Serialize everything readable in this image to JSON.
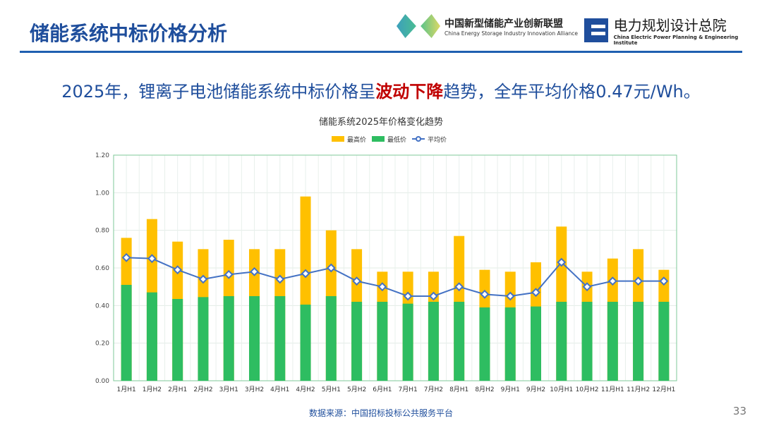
{
  "header": {
    "title": "储能系统中标价格分析",
    "logo1_cn": "中国新型储能产业创新联盟",
    "logo1_en": "China Energy Storage Industry Innovation Alliance",
    "logo2_cn": "电力规划设计总院",
    "logo2_en": "China Electric Power Planning & Engineering Institute"
  },
  "headline": {
    "pre": "2025年，锂离子电池储能系统中标价格呈",
    "highlight": "波动下降",
    "post": "趋势，全年平均价格0.47元/Wh。"
  },
  "footer": {
    "source": "数据来源：中国招标投标公共服务平台",
    "page": "33"
  },
  "colors": {
    "max": "#ffc000",
    "min": "#2ebd61",
    "avg": "#4472c4"
  },
  "chart_data": {
    "type": "bar",
    "title": "储能系统2025年价格变化趋势",
    "categories": [
      "1月H1",
      "1月H2",
      "2月H1",
      "2月H2",
      "3月H1",
      "3月H2",
      "4月H1",
      "4月H2",
      "5月H1",
      "5月H2",
      "6月H1",
      "7月H1",
      "7月H2",
      "8月H1",
      "8月H2",
      "9月H1",
      "9月H2",
      "10月H1",
      "10月H2",
      "11月H1",
      "11月H2",
      "12月H1"
    ],
    "series": [
      {
        "name": "最高价",
        "type": "bar",
        "values": [
          0.76,
          0.86,
          0.74,
          0.7,
          0.75,
          0.7,
          0.7,
          0.98,
          0.8,
          0.7,
          0.58,
          0.58,
          0.58,
          0.77,
          0.59,
          0.58,
          0.63,
          0.82,
          0.58,
          0.65,
          0.7,
          0.59
        ]
      },
      {
        "name": "最低价",
        "type": "bar",
        "values": [
          0.51,
          0.47,
          0.435,
          0.445,
          0.45,
          0.45,
          0.45,
          0.405,
          0.45,
          0.42,
          0.42,
          0.41,
          0.42,
          0.42,
          0.39,
          0.39,
          0.395,
          0.42,
          0.42,
          0.42,
          0.42,
          0.42
        ]
      },
      {
        "name": "平均价",
        "type": "line",
        "values": [
          0.655,
          0.65,
          0.59,
          0.54,
          0.565,
          0.58,
          0.54,
          0.57,
          0.6,
          0.53,
          0.5,
          0.45,
          0.45,
          0.5,
          0.46,
          0.45,
          0.47,
          0.63,
          0.5,
          0.53,
          0.53,
          0.53
        ]
      }
    ],
    "ylim": [
      0,
      1.2
    ],
    "yticks": [
      "0.00",
      "0.20",
      "0.40",
      "0.60",
      "0.80",
      "1.00",
      "1.20"
    ],
    "grid": true,
    "legend": "top-center",
    "xlabel": "",
    "ylabel": ""
  }
}
